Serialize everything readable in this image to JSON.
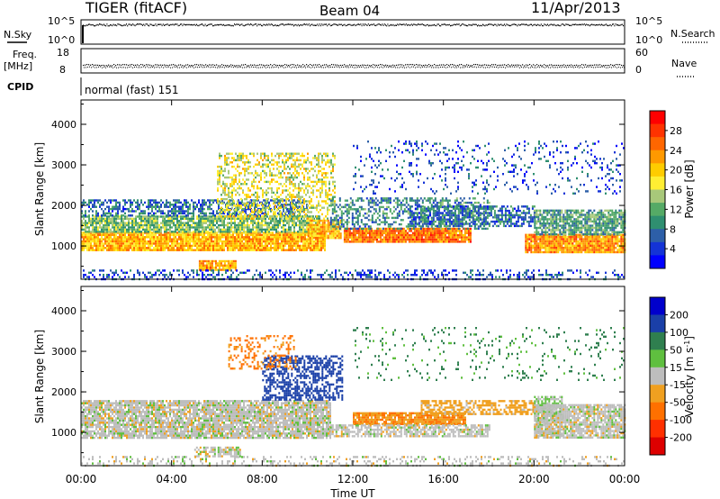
{
  "header": {
    "title": "TIGER (fitACF)",
    "beam": "Beam 04",
    "date": "11/Apr/2013"
  },
  "params": {
    "nsky_label": "N.Sky",
    "nsearch_label": "N.Search",
    "nsky_ticks": [
      "10^5",
      "10^0"
    ],
    "nsearch_ticks": [
      "10^5",
      "10^0"
    ],
    "freq_label": "Freq.",
    "freq_unit": "[MHz]",
    "freq_ticks": [
      "18",
      "8"
    ],
    "nave_label": "Nave",
    "nave_ticks": [
      "60",
      "0"
    ],
    "cpid_label": "CPID",
    "cpid_value": "normal (fast) 151"
  },
  "chart_data": [
    {
      "type": "heatmap",
      "name": "power-panel",
      "ylabel": "Slant Range [km]",
      "xlabel": "Time UT",
      "x_ticks": [
        "00:00",
        "04:00",
        "08:00",
        "12:00",
        "16:00",
        "20:00",
        "00:00"
      ],
      "y_ticks": [
        "1000",
        "2000",
        "3000",
        "4000"
      ],
      "ylim": [
        180,
        4600
      ],
      "xlim_hours": [
        0,
        24
      ],
      "colorbar": {
        "label": "Power [dB]",
        "ticks": [
          "28",
          "24",
          "20",
          "16",
          "12",
          "8",
          "4"
        ],
        "colors": [
          "#ff0000",
          "#ff3300",
          "#ff6600",
          "#ff9900",
          "#ffcc00",
          "#ffee33",
          "#a8c87a",
          "#55aa66",
          "#2f8f70",
          "#2d5fa8",
          "#1433d6",
          "#0000ff"
        ]
      },
      "regions": [
        {
          "t0": 0.0,
          "t1": 10.8,
          "r0": 900,
          "r1": 1350,
          "power": 22,
          "density": 0.95
        },
        {
          "t0": 0.0,
          "t1": 10.5,
          "r0": 1350,
          "r1": 1750,
          "power": 14,
          "density": 0.85
        },
        {
          "t0": 0.0,
          "t1": 10.0,
          "r0": 1750,
          "r1": 2150,
          "power": 8,
          "density": 0.55
        },
        {
          "t0": 5.2,
          "t1": 6.8,
          "r0": 420,
          "r1": 650,
          "power": 24,
          "density": 0.9
        },
        {
          "t0": 6.0,
          "t1": 11.2,
          "r0": 1700,
          "r1": 3300,
          "power": 18,
          "density": 0.45
        },
        {
          "t0": 10.0,
          "t1": 11.5,
          "r0": 1200,
          "r1": 1650,
          "power": 22,
          "density": 0.9
        },
        {
          "t0": 11.6,
          "t1": 17.2,
          "r0": 1100,
          "r1": 1450,
          "power": 26,
          "density": 0.95
        },
        {
          "t0": 11.0,
          "t1": 18.0,
          "r0": 1450,
          "r1": 2200,
          "power": 10,
          "density": 0.45
        },
        {
          "t0": 14.5,
          "t1": 20.0,
          "r0": 1500,
          "r1": 2000,
          "power": 8,
          "density": 0.6
        },
        {
          "t0": 19.6,
          "t1": 24.0,
          "r0": 850,
          "r1": 1300,
          "power": 24,
          "density": 0.95
        },
        {
          "t0": 20.0,
          "t1": 24.0,
          "r0": 1300,
          "r1": 1900,
          "power": 12,
          "density": 0.8
        },
        {
          "t0": 0.0,
          "t1": 24.0,
          "r0": 200,
          "r1": 420,
          "power": 6,
          "density": 0.3
        },
        {
          "t0": 12.0,
          "t1": 24.0,
          "r0": 2300,
          "r1": 3600,
          "power": 6,
          "density": 0.12
        }
      ]
    },
    {
      "type": "heatmap",
      "name": "velocity-panel",
      "ylabel": "Slant Range [km]",
      "xlabel": "Time UT",
      "x_ticks": [
        "00:00",
        "04:00",
        "08:00",
        "12:00",
        "16:00",
        "20:00",
        "00:00"
      ],
      "y_ticks": [
        "1000",
        "2000",
        "3000",
        "4000"
      ],
      "ylim": [
        180,
        4600
      ],
      "xlim_hours": [
        0,
        24
      ],
      "colorbar": {
        "label": "Velocity [m s^-1]",
        "ticks": [
          "200",
          "100",
          "50",
          "15",
          "-15",
          "-50",
          "-100",
          "-200"
        ],
        "colors": [
          "#0000cc",
          "#1a3fa8",
          "#2f7f4f",
          "#5fbf3f",
          "#bdbdbd",
          "#f0a020",
          "#ff7000",
          "#ff3000",
          "#dd0000"
        ]
      },
      "regions": [
        {
          "t0": 0.0,
          "t1": 11.0,
          "r0": 850,
          "r1": 1800,
          "velocity": 0,
          "density": 0.85
        },
        {
          "t0": 5.0,
          "t1": 7.0,
          "r0": 420,
          "r1": 650,
          "velocity": 0,
          "density": 0.7
        },
        {
          "t0": 8.0,
          "t1": 11.5,
          "r0": 1800,
          "r1": 2900,
          "velocity": 180,
          "density": 0.55
        },
        {
          "t0": 6.5,
          "t1": 9.5,
          "r0": 2600,
          "r1": 3400,
          "velocity": -60,
          "density": 0.3
        },
        {
          "t0": 12.0,
          "t1": 17.0,
          "r0": 1200,
          "r1": 1500,
          "velocity": -45,
          "density": 0.9
        },
        {
          "t0": 11.0,
          "t1": 18.0,
          "r0": 900,
          "r1": 1200,
          "velocity": 0,
          "density": 0.7
        },
        {
          "t0": 15.0,
          "t1": 20.0,
          "r0": 1450,
          "r1": 1800,
          "velocity": -30,
          "density": 0.6
        },
        {
          "t0": 20.0,
          "t1": 21.2,
          "r0": 900,
          "r1": 1900,
          "velocity": 20,
          "density": 0.6
        },
        {
          "t0": 20.0,
          "t1": 24.0,
          "r0": 900,
          "r1": 1700,
          "velocity": 0,
          "density": 0.85
        },
        {
          "t0": 0.0,
          "t1": 24.0,
          "r0": 200,
          "r1": 420,
          "velocity": 0,
          "density": 0.25
        },
        {
          "t0": 12.0,
          "t1": 24.0,
          "r0": 2300,
          "r1": 3600,
          "velocity": 60,
          "density": 0.08
        }
      ]
    }
  ]
}
